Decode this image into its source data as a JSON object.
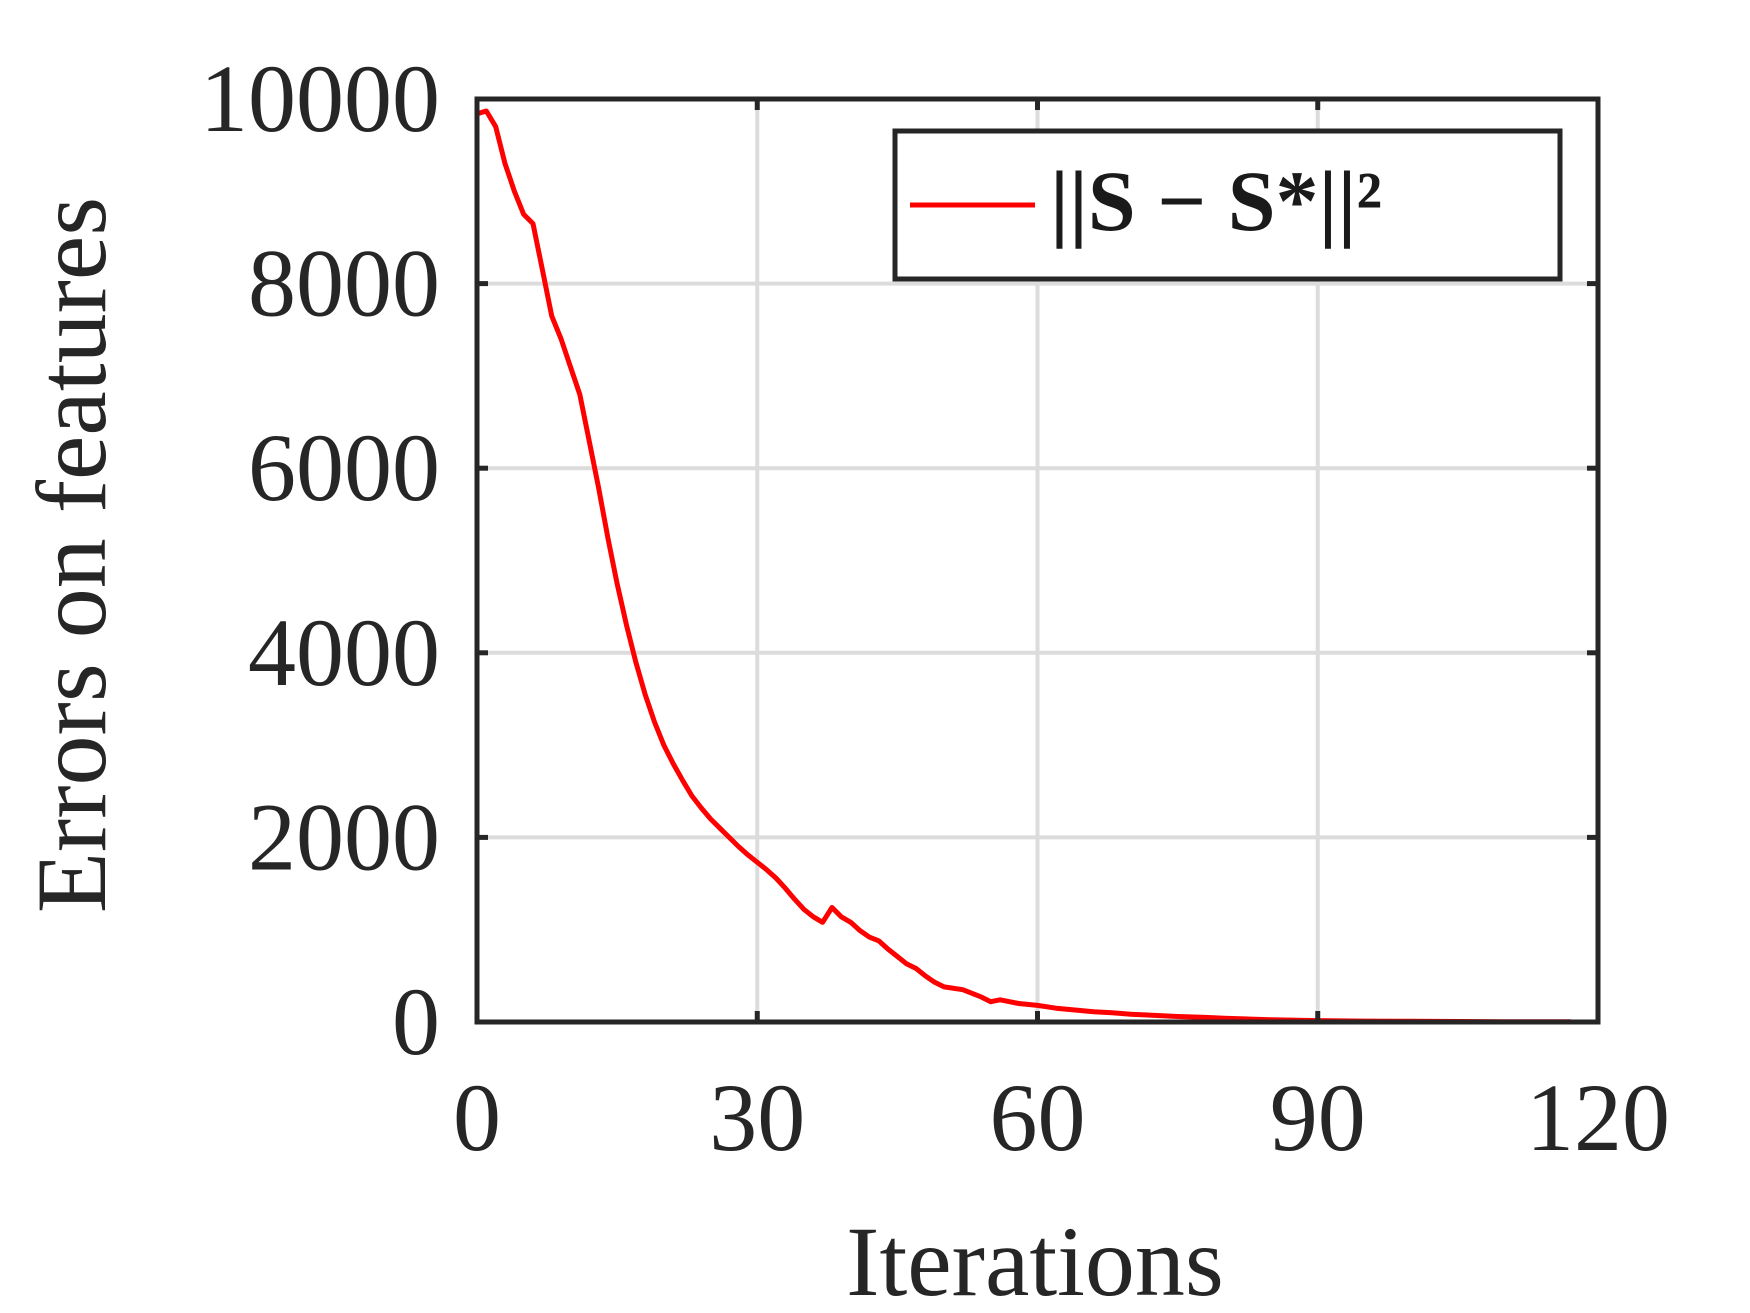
{
  "chart_data": {
    "type": "line",
    "title": "",
    "xlabel": "Iterations",
    "ylabel": "Errors on features",
    "xlim": [
      0,
      120
    ],
    "ylim": [
      0,
      10000
    ],
    "xticks": [
      0,
      30,
      60,
      90,
      120
    ],
    "yticks": [
      0,
      2000,
      4000,
      6000,
      8000,
      10000
    ],
    "x_tick_labels": [
      "0",
      "30",
      "60",
      "90",
      "120"
    ],
    "y_tick_labels": [
      "0",
      "2000",
      "4000",
      "6000",
      "8000",
      "10000"
    ],
    "grid": true,
    "legend_position": "top-right",
    "series": [
      {
        "name": "||S − S*||²",
        "color": "#ff0000",
        "x": [
          0,
          1,
          2,
          3,
          4,
          5,
          6,
          7,
          8,
          9,
          10,
          11,
          12,
          13,
          14,
          15,
          16,
          17,
          18,
          19,
          20,
          21,
          22,
          23,
          24,
          25,
          26,
          27,
          28,
          29,
          30,
          31,
          32,
          33,
          34,
          35,
          36,
          37,
          38,
          39,
          40,
          41,
          42,
          43,
          44,
          45,
          46,
          47,
          48,
          49,
          50,
          52,
          54,
          55,
          56,
          58,
          60,
          62,
          64,
          66,
          68,
          70,
          72,
          75,
          78,
          80,
          85,
          90,
          95,
          100,
          105,
          110,
          117
        ],
        "values": [
          9840,
          9870,
          9700,
          9300,
          9000,
          8750,
          8650,
          8150,
          7650,
          7400,
          7100,
          6800,
          6300,
          5800,
          5250,
          4750,
          4300,
          3900,
          3550,
          3250,
          3000,
          2800,
          2620,
          2450,
          2320,
          2200,
          2100,
          2000,
          1900,
          1810,
          1730,
          1650,
          1560,
          1450,
          1330,
          1220,
          1140,
          1080,
          1240,
          1140,
          1080,
          990,
          920,
          880,
          790,
          710,
          630,
          580,
          500,
          430,
          380,
          350,
          270,
          220,
          240,
          200,
          180,
          150,
          130,
          110,
          100,
          85,
          75,
          60,
          50,
          40,
          25,
          15,
          10,
          8,
          5,
          3,
          2
        ]
      }
    ]
  }
}
